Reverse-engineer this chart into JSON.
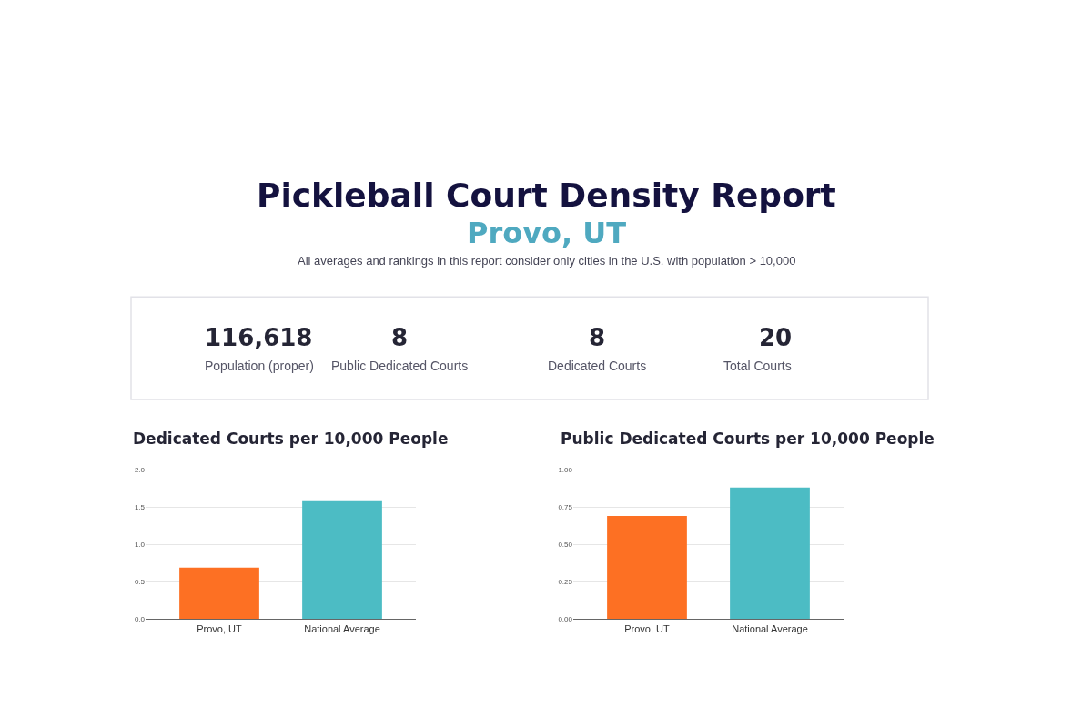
{
  "chart_data": [
    {
      "type": "other",
      "title": "Pickleball Court Density Report",
      "subtitle": "Provo, UT",
      "annotations": [
        "All averages and rankings in this report consider only cities in the U.S. with population > 10,000",
        "116,618",
        "Population (proper)",
        "8",
        "Public Dedicated Courts",
        "8",
        "Dedicated Courts",
        "20",
        "Total Courts"
      ]
    },
    {
      "type": "bar",
      "title": "Dedicated Courts per 10,000 People",
      "categories": [
        "Provo, UT",
        "National Average"
      ],
      "values": [
        0.69,
        1.59
      ],
      "colors": [
        "#fd7023",
        "#4cbcc4"
      ],
      "ylim": [
        0,
        2.0
      ],
      "yticks": [
        {
          "value": 0,
          "label": "0.0"
        },
        0.5,
        {
          "value": 1,
          "label": "1.0"
        },
        1.5,
        {
          "value": 2,
          "label": "2.0"
        }
      ],
      "grid": "y"
    },
    {
      "type": "bar",
      "title": "Public Dedicated Courts per 10,000 People",
      "categories": [
        "Provo, UT",
        "National Average"
      ],
      "values": [
        0.69,
        0.88
      ],
      "colors": [
        "#fd7023",
        "#4cbcc4"
      ],
      "ylim": [
        0,
        1.0
      ],
      "yticks": [
        {
          "value": 0,
          "label": "0.00"
        },
        0.25,
        {
          "value": 0.5,
          "label": "0.50"
        },
        0.75,
        {
          "value": 1,
          "label": "1.00"
        }
      ],
      "grid": "y"
    }
  ]
}
